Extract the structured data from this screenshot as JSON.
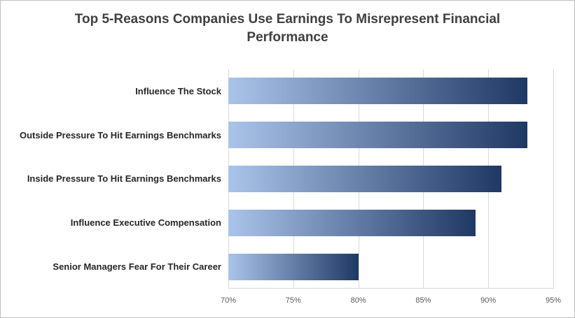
{
  "chart_data": {
    "type": "bar",
    "orientation": "horizontal",
    "title": "Top 5-Reasons Companies Use Earnings To Misrepresent Financial Performance",
    "categories": [
      "Influence The Stock",
      "Outside Pressure To Hit Earnings Benchmarks",
      "Inside Pressure To Hit Earnings Benchmarks",
      "Influence Executive Compensation",
      "Senior Managers Fear For Their Career"
    ],
    "values": [
      93,
      93,
      91,
      89,
      80
    ],
    "unit": "%",
    "xlim": [
      70,
      95
    ],
    "x_ticks": [
      "70%",
      "75%",
      "80%",
      "85%",
      "90%",
      "95%"
    ],
    "x_tick_values": [
      70,
      75,
      80,
      85,
      90,
      95
    ],
    "grid": true,
    "legend": "none",
    "bar_gradient_left": "#aac4ea",
    "bar_gradient_right": "#1f3864"
  },
  "colors": {
    "title_text": "#404040",
    "category_text": "#262626",
    "axis_text": "#595959",
    "gridline": "#d9d9d9",
    "frame_border": "#bfbfbf",
    "background": "#ffffff"
  }
}
